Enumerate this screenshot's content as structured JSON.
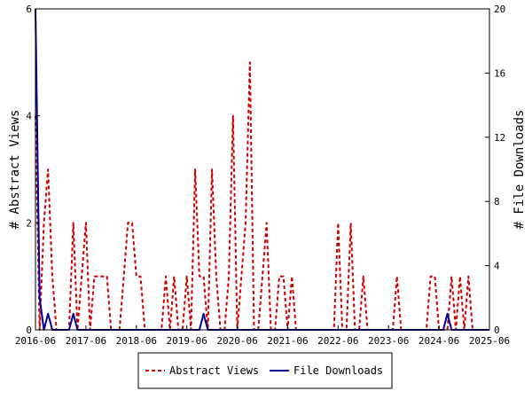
{
  "chart_data": {
    "type": "line",
    "title": "",
    "xlabel": "",
    "ylabel_left": "# Abstract Views",
    "ylabel_right": "# File Downloads",
    "x_ticks": [
      "2016-06",
      "2017-06",
      "2018-06",
      "2019-06",
      "2020-06",
      "2021-06",
      "2022-06",
      "2023-06",
      "2024-06",
      "2025-06"
    ],
    "x_range": [
      "2016-06",
      "2025-06"
    ],
    "ylim_left": [
      0,
      6
    ],
    "y_ticks_left": [
      0,
      2,
      4,
      6
    ],
    "ylim_right": [
      0,
      20
    ],
    "y_ticks_right": [
      0,
      4,
      8,
      12,
      16,
      20
    ],
    "grid": false,
    "legend_position": "bottom",
    "series": [
      {
        "name": "Abstract Views",
        "axis": "left",
        "color": "#cc0000",
        "style": "dashed",
        "points": [
          [
            "2016-06",
            4
          ],
          [
            "2016-07",
            0
          ],
          [
            "2016-08",
            2
          ],
          [
            "2016-09",
            3
          ],
          [
            "2016-10",
            1
          ],
          [
            "2016-11",
            0
          ],
          [
            "2016-12",
            0
          ],
          [
            "2017-01",
            0
          ],
          [
            "2017-02",
            0
          ],
          [
            "2017-03",
            2
          ],
          [
            "2017-04",
            0
          ],
          [
            "2017-05",
            1
          ],
          [
            "2017-06",
            2
          ],
          [
            "2017-07",
            0
          ],
          [
            "2017-08",
            1
          ],
          [
            "2017-09",
            1
          ],
          [
            "2017-10",
            1
          ],
          [
            "2017-11",
            1
          ],
          [
            "2017-12",
            0
          ],
          [
            "2018-01",
            0
          ],
          [
            "2018-02",
            0
          ],
          [
            "2018-03",
            1
          ],
          [
            "2018-04",
            2
          ],
          [
            "2018-05",
            2
          ],
          [
            "2018-06",
            1
          ],
          [
            "2018-07",
            1
          ],
          [
            "2018-08",
            0
          ],
          [
            "2018-09",
            0
          ],
          [
            "2018-10",
            0
          ],
          [
            "2018-11",
            0
          ],
          [
            "2018-12",
            0
          ],
          [
            "2019-01",
            1
          ],
          [
            "2019-02",
            0
          ],
          [
            "2019-03",
            1
          ],
          [
            "2019-04",
            0
          ],
          [
            "2019-05",
            0
          ],
          [
            "2019-06",
            1
          ],
          [
            "2019-07",
            0
          ],
          [
            "2019-08",
            3
          ],
          [
            "2019-09",
            1
          ],
          [
            "2019-10",
            1
          ],
          [
            "2019-11",
            0
          ],
          [
            "2019-12",
            3
          ],
          [
            "2020-01",
            1
          ],
          [
            "2020-02",
            0
          ],
          [
            "2020-03",
            0
          ],
          [
            "2020-04",
            1
          ],
          [
            "2020-05",
            4
          ],
          [
            "2020-06",
            0
          ],
          [
            "2020-07",
            1
          ],
          [
            "2020-08",
            2
          ],
          [
            "2020-09",
            5
          ],
          [
            "2020-10",
            0
          ],
          [
            "2020-11",
            0
          ],
          [
            "2020-12",
            1
          ],
          [
            "2021-01",
            2
          ],
          [
            "2021-02",
            0
          ],
          [
            "2021-03",
            0
          ],
          [
            "2021-04",
            1
          ],
          [
            "2021-05",
            1
          ],
          [
            "2021-06",
            0
          ],
          [
            "2021-07",
            1
          ],
          [
            "2021-08",
            0
          ],
          [
            "2021-09",
            0
          ],
          [
            "2021-10",
            0
          ],
          [
            "2021-11",
            0
          ],
          [
            "2021-12",
            0
          ],
          [
            "2022-01",
            0
          ],
          [
            "2022-02",
            0
          ],
          [
            "2022-03",
            0
          ],
          [
            "2022-04",
            0
          ],
          [
            "2022-05",
            0
          ],
          [
            "2022-06",
            2
          ],
          [
            "2022-07",
            0
          ],
          [
            "2022-08",
            0
          ],
          [
            "2022-09",
            2
          ],
          [
            "2022-10",
            0
          ],
          [
            "2022-11",
            0
          ],
          [
            "2022-12",
            1
          ],
          [
            "2023-01",
            0
          ],
          [
            "2023-02",
            0
          ],
          [
            "2023-03",
            0
          ],
          [
            "2023-04",
            0
          ],
          [
            "2023-05",
            0
          ],
          [
            "2023-06",
            0
          ],
          [
            "2023-07",
            0
          ],
          [
            "2023-08",
            1
          ],
          [
            "2023-09",
            0
          ],
          [
            "2023-10",
            0
          ],
          [
            "2023-11",
            0
          ],
          [
            "2023-12",
            0
          ],
          [
            "2024-01",
            0
          ],
          [
            "2024-02",
            0
          ],
          [
            "2024-03",
            0
          ],
          [
            "2024-04",
            1
          ],
          [
            "2024-05",
            1
          ],
          [
            "2024-06",
            0
          ],
          [
            "2024-07",
            0
          ],
          [
            "2024-08",
            0
          ],
          [
            "2024-09",
            1
          ],
          [
            "2024-10",
            0
          ],
          [
            "2024-11",
            1
          ],
          [
            "2024-12",
            0
          ],
          [
            "2025-01",
            1
          ],
          [
            "2025-02",
            0
          ],
          [
            "2025-03",
            0
          ],
          [
            "2025-04",
            0
          ],
          [
            "2025-05",
            0
          ]
        ]
      },
      {
        "name": "File Downloads",
        "axis": "right",
        "color": "#000099",
        "style": "solid",
        "points": [
          [
            "2016-06",
            20
          ],
          [
            "2016-07",
            2
          ],
          [
            "2016-08",
            0
          ],
          [
            "2016-09",
            1
          ],
          [
            "2016-10",
            0
          ],
          [
            "2016-11",
            0
          ],
          [
            "2016-12",
            0
          ],
          [
            "2017-01",
            0
          ],
          [
            "2017-02",
            0
          ],
          [
            "2017-03",
            1
          ],
          [
            "2017-04",
            0
          ],
          [
            "2017-05",
            0
          ],
          [
            "2017-06",
            0
          ],
          [
            "2018-06",
            0
          ],
          [
            "2019-06",
            0
          ],
          [
            "2019-09",
            0
          ],
          [
            "2019-10",
            1
          ],
          [
            "2019-11",
            0
          ],
          [
            "2020-06",
            0
          ],
          [
            "2021-06",
            0
          ],
          [
            "2022-06",
            0
          ],
          [
            "2023-06",
            0
          ],
          [
            "2024-06",
            0
          ],
          [
            "2024-07",
            0
          ],
          [
            "2024-08",
            1
          ],
          [
            "2024-09",
            0
          ],
          [
            "2025-06",
            0
          ]
        ]
      }
    ]
  }
}
